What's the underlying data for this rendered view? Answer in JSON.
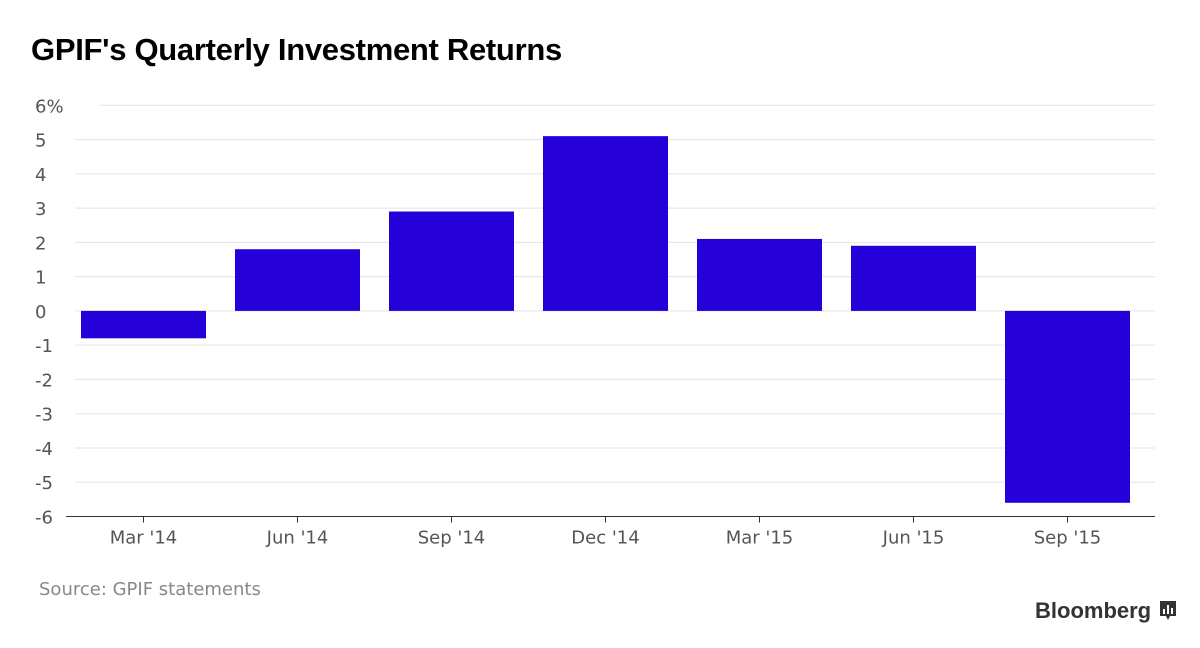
{
  "chart_data": {
    "type": "bar",
    "title": "GPIF's Quarterly Investment Returns",
    "categories": [
      "Mar '14",
      "Jun '14",
      "Sep '14",
      "Dec '14",
      "Mar '15",
      "Jun '15",
      "Sep '15"
    ],
    "values": [
      -0.8,
      1.8,
      2.9,
      5.1,
      2.1,
      1.9,
      -5.6
    ],
    "xlabel": "",
    "ylabel": "",
    "ylim": [
      -6,
      6
    ],
    "yticks": [
      6,
      5,
      4,
      3,
      2,
      1,
      0,
      -1,
      -2,
      -3,
      -4,
      -5,
      -6
    ],
    "ytick_labels": [
      "6%",
      "5",
      "4",
      "3",
      "2",
      "1",
      "0",
      "-1",
      "-2",
      "-3",
      "-4",
      "-5",
      "-6"
    ],
    "grid": true,
    "bar_color": "#2600d8",
    "source": "Source: GPIF statements",
    "brand": "Bloomberg"
  }
}
